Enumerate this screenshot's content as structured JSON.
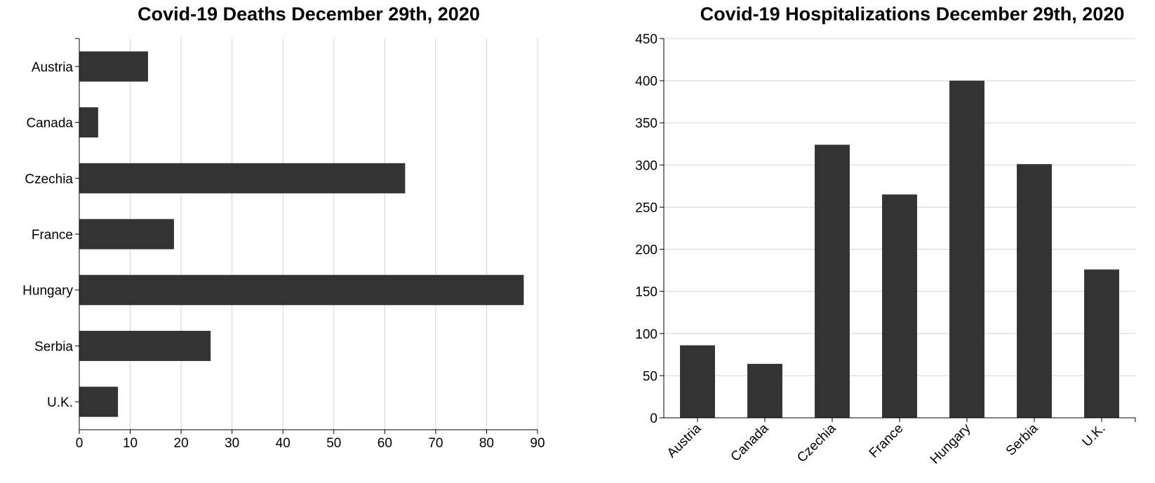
{
  "chart_data": [
    {
      "type": "bar",
      "orientation": "horizontal",
      "title": "Covid-19 Deaths December 29th, 2020",
      "categories": [
        "Austria",
        "Canada",
        "Czechia",
        "France",
        "Hungary",
        "Serbia",
        "U.K."
      ],
      "values": [
        13.5,
        3.7,
        64,
        18.6,
        87.3,
        25.8,
        7.6
      ],
      "xlim": [
        0,
        90
      ],
      "xticks": [
        0,
        10,
        20,
        30,
        40,
        50,
        60,
        70,
        80,
        90
      ],
      "grid": true,
      "bar_color": "#333333"
    },
    {
      "type": "bar",
      "orientation": "vertical",
      "title": "Covid-19 Hospitalizations December 29th, 2020",
      "categories": [
        "Austria",
        "Canada",
        "Czechia",
        "France",
        "Hungary",
        "Serbia",
        "U.K."
      ],
      "values": [
        86,
        64,
        324,
        265,
        400,
        301,
        176
      ],
      "ylim": [
        0,
        450
      ],
      "yticks": [
        0,
        50,
        100,
        150,
        200,
        250,
        300,
        350,
        400,
        450
      ],
      "grid": true,
      "bar_color": "#333333"
    }
  ]
}
